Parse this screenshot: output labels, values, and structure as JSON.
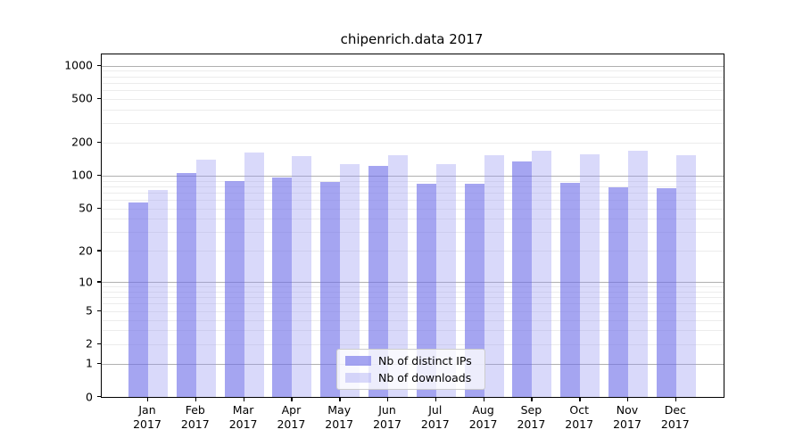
{
  "title": "chipenrich.data 2017",
  "chart_data": {
    "type": "bar",
    "title": "chipenrich.data 2017",
    "categories": [
      "Jan",
      "Feb",
      "Mar",
      "Apr",
      "May",
      "Jun",
      "Jul",
      "Aug",
      "Sep",
      "Oct",
      "Nov",
      "Dec"
    ],
    "year": "2017",
    "series": [
      {
        "name": "Nb of distinct IPs",
        "color": "rgba(110,110,232,0.62)",
        "values": [
          57,
          105,
          89,
          97,
          88,
          124,
          84,
          85,
          135,
          86,
          78,
          77
        ]
      },
      {
        "name": "Nb of downloads",
        "color": "rgba(150,150,240,0.36)",
        "values": [
          74,
          141,
          162,
          152,
          127,
          155,
          128,
          153,
          170,
          157,
          170,
          155
        ]
      }
    ],
    "yscale": "log10(1+y)",
    "yticks": [
      0,
      1,
      2,
      5,
      10,
      20,
      50,
      100,
      200,
      500,
      1000
    ],
    "ylim": [
      0,
      1267
    ],
    "grid": {
      "on": true,
      "major_color": "#b0b0b0",
      "minor_color": "#ececec"
    },
    "legend_position": "bottom-center",
    "xlabel": "",
    "ylabel": ""
  }
}
